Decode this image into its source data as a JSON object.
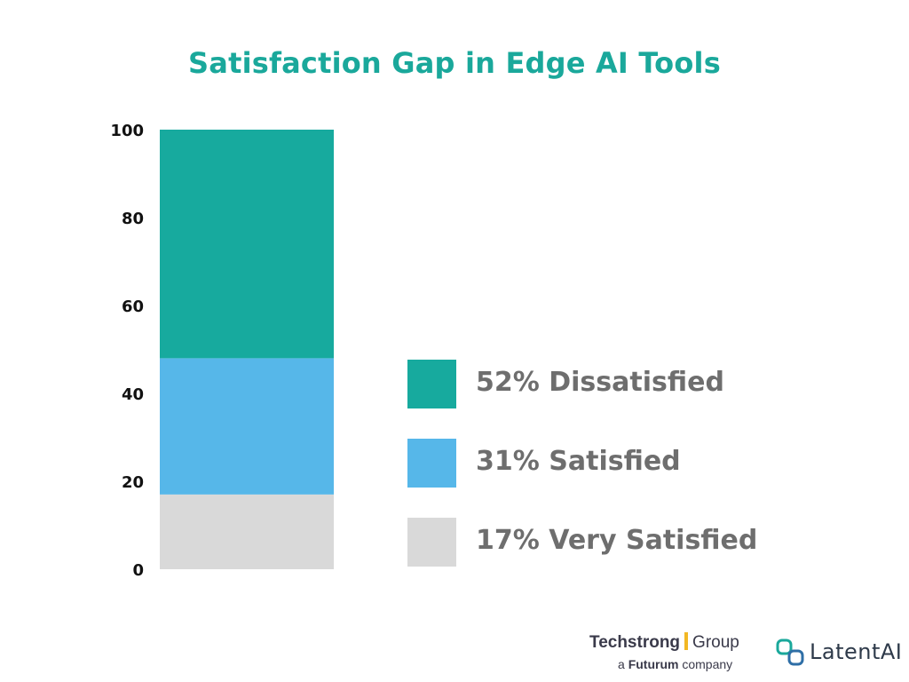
{
  "chart_data": {
    "type": "bar",
    "title": "Satisfaction Gap in Edge AI Tools",
    "xlabel": "",
    "ylabel": "",
    "ylim": [
      0,
      100
    ],
    "yticks": [
      "100",
      "80",
      "60",
      "40",
      "20",
      "0"
    ],
    "stacked": true,
    "grid": false,
    "legend_position": "right",
    "categories": [
      ""
    ],
    "series": [
      {
        "name": "Very Satisfied",
        "values": [
          17
        ],
        "color": "#d9d9d9"
      },
      {
        "name": "Satisfied",
        "values": [
          31
        ],
        "color": "#56b7e9"
      },
      {
        "name": "Dissatisfied",
        "values": [
          52
        ],
        "color": "#17aa9e"
      }
    ],
    "legend": [
      {
        "label": "52% Dissatisfied",
        "color": "#17aa9e"
      },
      {
        "label": "31% Satisfied",
        "color": "#56b7e9"
      },
      {
        "label": "17% Very Satisfied",
        "color": "#d9d9d9"
      }
    ]
  },
  "logos": {
    "techstrong_word": "Techstrong",
    "techstrong_group": "Group",
    "techstrong_sub_prefix": "a",
    "techstrong_sub_brand": "Futurum",
    "techstrong_sub_suffix": "company",
    "latentai": "LatentAI"
  },
  "colors": {
    "title": "#1aa89b",
    "legend_text": "#6e6e6e"
  }
}
